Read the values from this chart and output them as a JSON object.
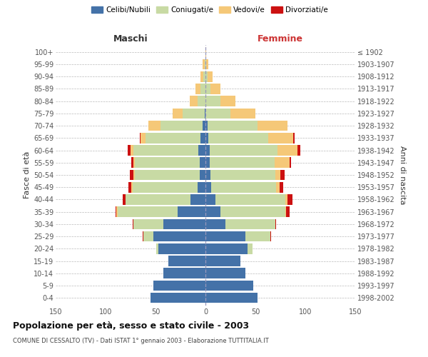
{
  "age_groups": [
    "0-4",
    "5-9",
    "10-14",
    "15-19",
    "20-24",
    "25-29",
    "30-34",
    "35-39",
    "40-44",
    "45-49",
    "50-54",
    "55-59",
    "60-64",
    "65-69",
    "70-74",
    "75-79",
    "80-84",
    "85-89",
    "90-94",
    "95-99",
    "100+"
  ],
  "birth_years": [
    "1998-2002",
    "1993-1997",
    "1988-1992",
    "1983-1987",
    "1978-1982",
    "1973-1977",
    "1968-1972",
    "1963-1967",
    "1958-1962",
    "1953-1957",
    "1948-1952",
    "1943-1947",
    "1938-1942",
    "1933-1937",
    "1928-1932",
    "1923-1927",
    "1918-1922",
    "1913-1917",
    "1908-1912",
    "1903-1907",
    "≤ 1902"
  ],
  "colors": {
    "celibe": "#4472a8",
    "coniugato": "#c8daa4",
    "vedovo": "#f5c878",
    "divorziato": "#cc1111"
  },
  "males": {
    "celibe": [
      55,
      52,
      42,
      37,
      47,
      52,
      42,
      28,
      15,
      8,
      6,
      6,
      7,
      5,
      3,
      1,
      0,
      0,
      0,
      0,
      0
    ],
    "coniugato": [
      0,
      0,
      0,
      0,
      2,
      10,
      30,
      60,
      65,
      65,
      65,
      65,
      65,
      55,
      42,
      22,
      8,
      5,
      2,
      1,
      0
    ],
    "vedovo": [
      0,
      0,
      0,
      0,
      0,
      0,
      0,
      1,
      0,
      1,
      1,
      1,
      3,
      5,
      12,
      10,
      8,
      5,
      3,
      2,
      0
    ],
    "divorziato": [
      0,
      0,
      0,
      0,
      0,
      1,
      1,
      1,
      3,
      3,
      4,
      2,
      3,
      1,
      0,
      0,
      0,
      0,
      0,
      0,
      0
    ]
  },
  "females": {
    "nubile": [
      52,
      48,
      40,
      35,
      42,
      40,
      20,
      15,
      10,
      6,
      5,
      4,
      4,
      3,
      2,
      0,
      0,
      0,
      0,
      0,
      0
    ],
    "coniugata": [
      0,
      0,
      0,
      0,
      5,
      25,
      50,
      65,
      70,
      65,
      65,
      65,
      68,
      60,
      50,
      25,
      15,
      5,
      2,
      1,
      0
    ],
    "vedova": [
      0,
      0,
      0,
      0,
      0,
      0,
      0,
      1,
      2,
      3,
      5,
      15,
      20,
      25,
      30,
      25,
      15,
      10,
      5,
      2,
      1
    ],
    "divorziata": [
      0,
      0,
      0,
      0,
      0,
      1,
      1,
      3,
      5,
      4,
      4,
      2,
      3,
      1,
      0,
      0,
      0,
      0,
      0,
      0,
      0
    ]
  },
  "xlim": 150,
  "xticks": [
    -150,
    -100,
    -50,
    0,
    50,
    100,
    150
  ],
  "title": "Popolazione per età, sesso e stato civile - 2003",
  "subtitle": "COMUNE DI CESSALTO (TV) - Dati ISTAT 1° gennaio 2003 - Elaborazione TUTTITALIA.IT",
  "label_maschi": "Maschi",
  "label_femmine": "Femmine",
  "ylabel_left": "Fasce di età",
  "ylabel_right": "Anni di nascita",
  "background": "#ffffff",
  "grid_color": "#bbbbbb",
  "legend": [
    "Celibi/Nubili",
    "Coniugati/e",
    "Vedovi/e",
    "Divorziati/e"
  ]
}
